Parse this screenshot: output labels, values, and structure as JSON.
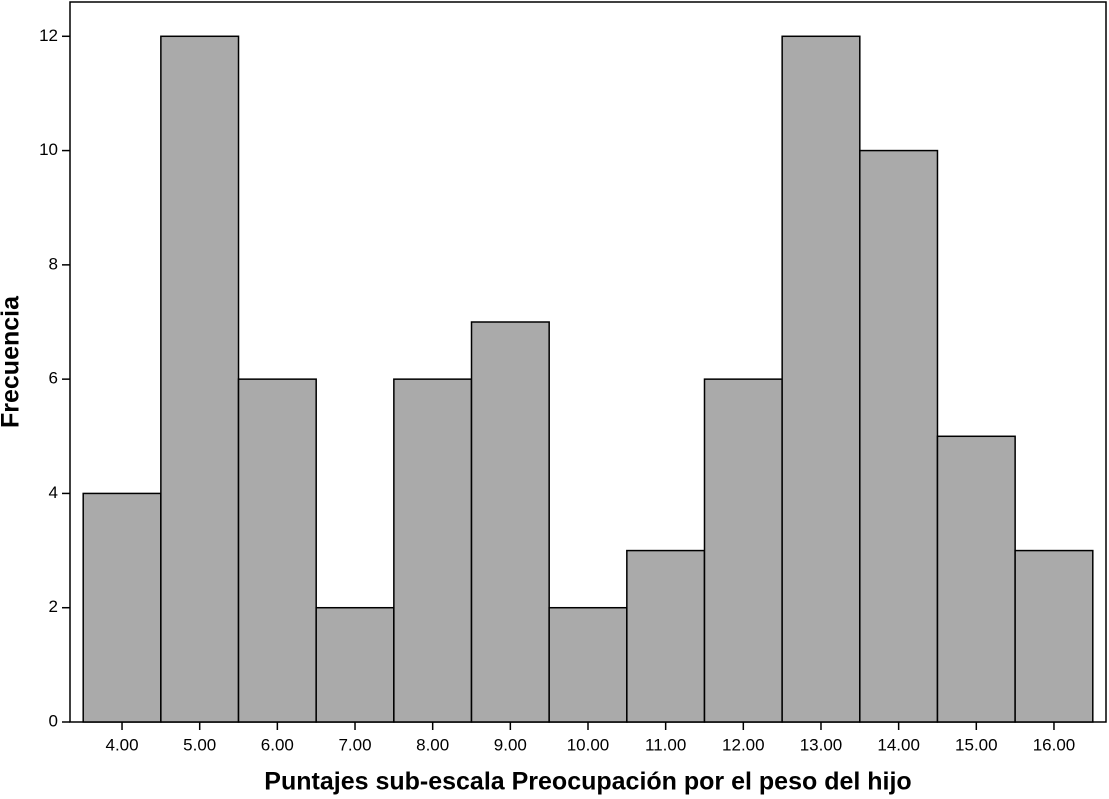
{
  "chart_data": {
    "type": "histogram",
    "xlabel": "Puntajes sub-escala Preocupación por el peso del hijo",
    "ylabel": "Frecuencia",
    "bins": [
      3.5,
      4.5,
      5.5,
      6.5,
      7.5,
      8.5,
      9.5,
      10.5,
      11.5,
      12.5,
      13.5,
      14.5,
      15.5,
      16.5
    ],
    "values": [
      4,
      12,
      6,
      2,
      6,
      7,
      2,
      3,
      6,
      12,
      10,
      5,
      3
    ],
    "color": "#aaaaaa",
    "xlim": [
      3.33,
      16.67
    ],
    "xticks": [
      {
        "value": 4,
        "label": "4.00"
      },
      {
        "value": 5,
        "label": "5.00"
      },
      {
        "value": 6,
        "label": "6.00"
      },
      {
        "value": 7,
        "label": "7.00"
      },
      {
        "value": 8,
        "label": "8.00"
      },
      {
        "value": 9,
        "label": "9.00"
      },
      {
        "value": 10,
        "label": "10.00"
      },
      {
        "value": 11,
        "label": "11.00"
      },
      {
        "value": 12,
        "label": "12.00"
      },
      {
        "value": 13,
        "label": "13.00"
      },
      {
        "value": 14,
        "label": "14.00"
      },
      {
        "value": 15,
        "label": "15.00"
      },
      {
        "value": 16,
        "label": "16.00"
      }
    ],
    "ylim": [
      0,
      12.6
    ],
    "yticks": [
      0,
      2,
      4,
      6,
      8,
      10,
      12
    ],
    "grid": false
  }
}
